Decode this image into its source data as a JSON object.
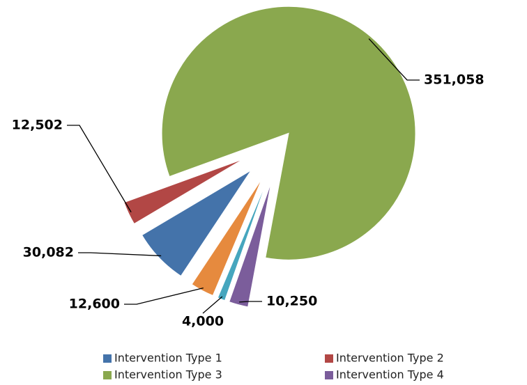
{
  "chart_data": {
    "type": "pie",
    "categories": [
      "Intervention Type 3",
      "Intervention Type 4",
      null,
      null,
      "Intervention Type 1",
      "Intervention Type 2"
    ],
    "values": [
      351058,
      10250,
      4000,
      12600,
      30082,
      12502
    ],
    "value_labels": [
      "351,058",
      "10,250",
      "4,000",
      "12,600",
      "30,082",
      "12,502"
    ],
    "colors": [
      "#8aa84e",
      "#7b5d9b",
      "#46a6be",
      "#e68a3e",
      "#4473aa",
      "#b24745"
    ],
    "legend": "bottom"
  }
}
